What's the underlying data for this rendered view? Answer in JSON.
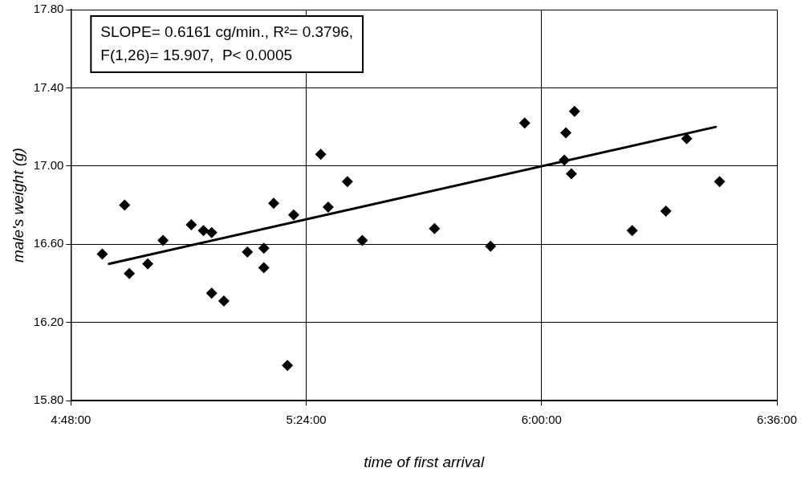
{
  "chart_data": {
    "type": "scatter",
    "xlabel": "time of first arrival",
    "ylabel": "male's weight (g)",
    "annotations": [
      "SLOPE= 0.6161 cg/min., R²= 0.3796,",
      "F(1,26)= 15.907,  P< 0.0005"
    ],
    "xlim": [
      4.8,
      6.6
    ],
    "xticks": [
      {
        "value": 4.8,
        "label": "4:48:00"
      },
      {
        "value": 5.4,
        "label": "5:24:00"
      },
      {
        "value": 6.0,
        "label": "6:00:00"
      },
      {
        "value": 6.6,
        "label": "6:36:00"
      }
    ],
    "ylim": [
      15.8,
      17.8
    ],
    "yticks": [
      {
        "value": 15.8,
        "label": "15.80"
      },
      {
        "value": 16.2,
        "label": "16.20"
      },
      {
        "value": 16.6,
        "label": "16.60"
      },
      {
        "value": 17.0,
        "label": "17.00"
      },
      {
        "value": 17.4,
        "label": "17.40"
      },
      {
        "value": 17.8,
        "label": "17.80"
      }
    ],
    "grid": true,
    "legend": false,
    "marker": "diamond",
    "series": [
      {
        "type": "scatter",
        "color": "#000000",
        "x": [
          4.88,
          4.937,
          4.949,
          4.996,
          5.035,
          5.107,
          5.138,
          5.159,
          5.159,
          5.19,
          5.25,
          5.292,
          5.292,
          5.317,
          5.352,
          5.368,
          5.437,
          5.456,
          5.505,
          5.543,
          5.727,
          5.87,
          5.957,
          6.062,
          6.084,
          6.058,
          6.076,
          6.231,
          6.317,
          6.37,
          6.454
        ],
        "values": [
          16.55,
          16.8,
          16.45,
          16.5,
          16.62,
          16.7,
          16.67,
          16.66,
          16.35,
          16.31,
          16.56,
          16.58,
          16.48,
          16.81,
          15.98,
          16.75,
          17.06,
          16.79,
          16.92,
          16.62,
          16.68,
          16.59,
          17.22,
          17.17,
          17.28,
          17.03,
          16.96,
          16.67,
          16.77,
          17.14,
          16.92
        ]
      },
      {
        "type": "line",
        "color": "#000000",
        "marker": "none",
        "x": [
          4.897,
          6.444
        ],
        "values": [
          16.5,
          17.2
        ]
      }
    ]
  }
}
